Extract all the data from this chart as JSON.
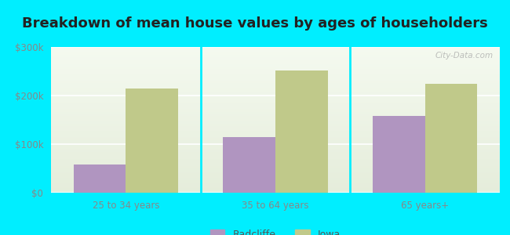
{
  "title": "Breakdown of mean house values by ages of householders",
  "categories": [
    "25 to 34 years",
    "35 to 64 years",
    "65 years+"
  ],
  "radcliffe_values": [
    58000,
    115000,
    158000
  ],
  "iowa_values": [
    215000,
    252000,
    225000
  ],
  "ylim": [
    0,
    300000
  ],
  "yticks": [
    0,
    100000,
    200000,
    300000
  ],
  "ytick_labels": [
    "$0",
    "$100k",
    "$200k",
    "$300k"
  ],
  "bar_width": 0.35,
  "radcliffe_color": "#b095c0",
  "iowa_color": "#c0c98a",
  "background_color": "#00eeff",
  "legend_radcliffe": "Radcliffe",
  "legend_iowa": "Iowa",
  "title_fontsize": 13,
  "watermark": "City-Data.com",
  "grid_color": "#dddddd",
  "tick_color": "#888888",
  "separator_color": "#00eeff"
}
